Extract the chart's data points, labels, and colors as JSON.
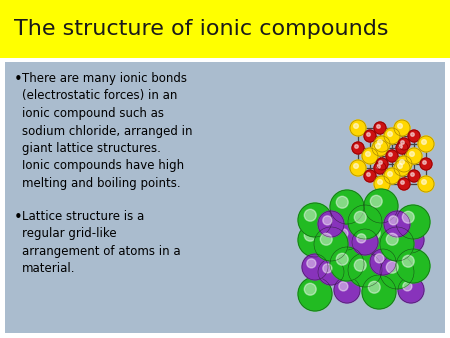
{
  "title": "The structure of ionic compounds",
  "title_bg": "#FFFF00",
  "title_color": "#1a1a1a",
  "body_bg": "#AABBCC",
  "white_bg": "#FFFFFF",
  "bullet1": "There are many ionic bonds\n(electrostatic forces) in an\nionic compound such as\nsodium chloride, arranged in\ngiant lattice structures.\nIonic compounds have high\nmelting and boiling points.",
  "bullet2": "Lattice structure is a\nregular grid-like\narrangement of atoms in a\nmaterial.",
  "font_size_title": 16,
  "font_size_body": 8.5,
  "lattice_yellow": "#FFD700",
  "lattice_red": "#CC1111",
  "lattice_line": "#444444",
  "sphere_green": "#22BB22",
  "sphere_purple": "#8833BB"
}
